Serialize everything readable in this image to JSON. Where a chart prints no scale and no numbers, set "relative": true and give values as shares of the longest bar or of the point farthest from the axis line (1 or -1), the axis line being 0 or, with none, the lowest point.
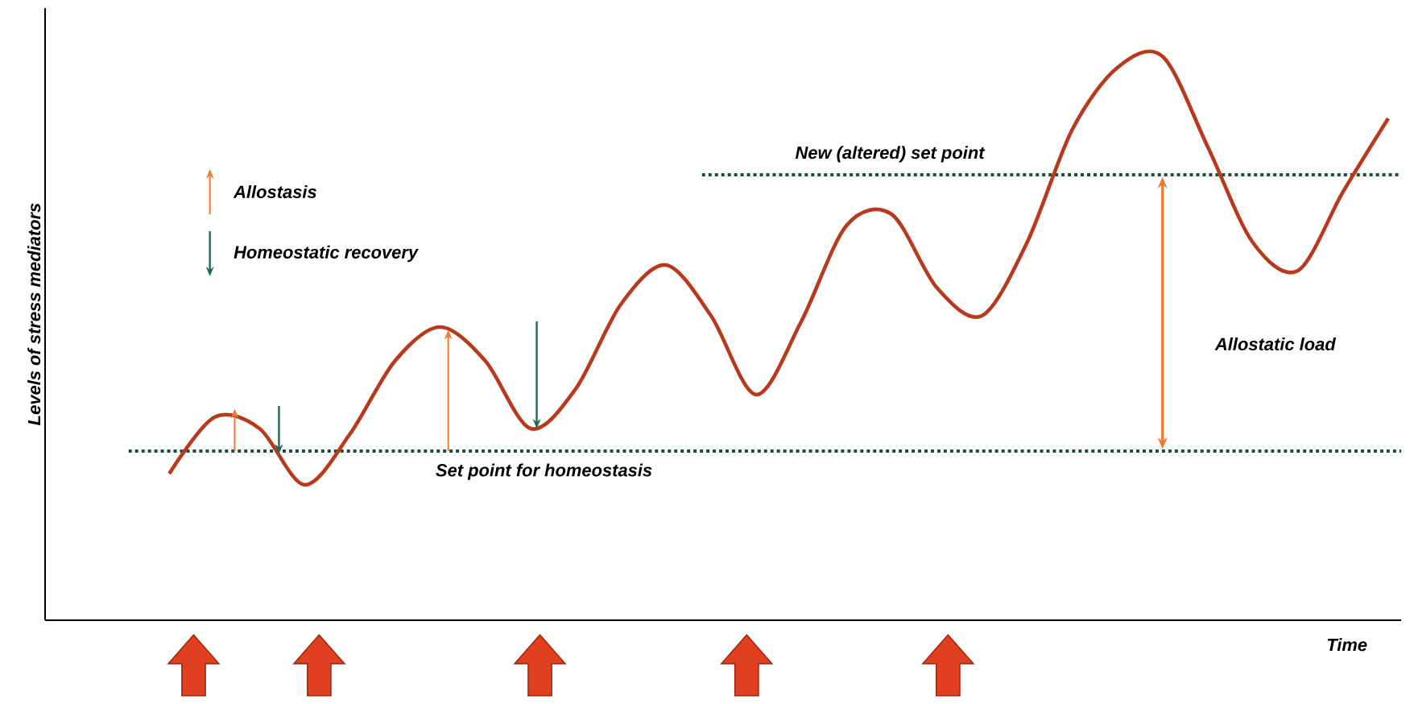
{
  "chart_data": {
    "type": "line",
    "relative": true,
    "xlabel": "Time",
    "ylabel": "Levels of stress mediators",
    "categories": [
      null,
      null,
      null,
      null,
      null,
      null,
      null,
      null,
      null,
      null,
      null,
      null,
      null,
      null,
      null,
      null,
      null,
      null,
      null,
      null,
      null,
      null,
      null,
      null,
      null,
      null,
      null,
      null
    ],
    "series": [
      {
        "color": "#b83a1e",
        "values": [
          0.26,
          0.36,
          0.34,
          0.24,
          0.33,
          0.46,
          0.52,
          0.46,
          0.34,
          0.41,
          0.56,
          0.63,
          0.54,
          0.4,
          0.53,
          0.7,
          0.72,
          0.59,
          0.54,
          0.67,
          0.87,
          0.98,
          1.0,
          0.84,
          0.67,
          0.62,
          0.76,
          0.89
        ]
      }
    ],
    "ref_lines": [
      {
        "axis": "y",
        "value": 0.3,
        "label": "Set point for homeostasis",
        "color": "#1f4e3d",
        "line_style": "dotted"
      },
      {
        "axis": "y",
        "value": 0.79,
        "label": "New (altered) set point",
        "color": "#1f4e3d",
        "line_style": "dotted"
      }
    ],
    "annotations": [
      "Allostasis",
      "Homeostatic recovery",
      "Allostatic load"
    ],
    "marker": "none",
    "line_style": "solid"
  }
}
